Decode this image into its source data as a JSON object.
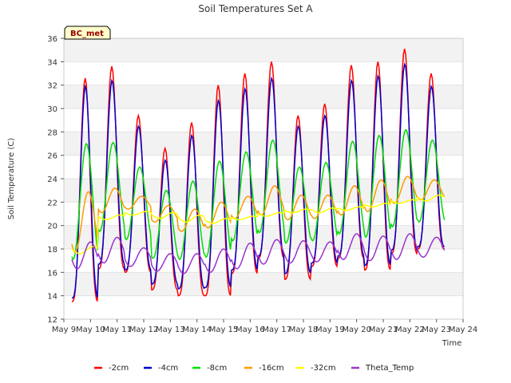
{
  "chart_data": {
    "type": "line",
    "title": "Soil Temperatures Set A",
    "xlabel": "Time",
    "ylabel": "Soil Temperature (C)",
    "station_label": "BC_met",
    "xlim": [
      9,
      24
    ],
    "ylim": [
      12,
      36
    ],
    "x_ticks": [
      "May 9",
      "May 10",
      "May 11",
      "May 12",
      "May 13",
      "May 14",
      "May 15",
      "May 16",
      "May 17",
      "May 18",
      "May 19",
      "May 20",
      "May 21",
      "May 22",
      "May 23",
      "May 24"
    ],
    "y_ticks": [
      12,
      14,
      16,
      18,
      20,
      22,
      24,
      26,
      28,
      30,
      32,
      34,
      36
    ],
    "grid": "horizontal bands",
    "legend_position": "bottom",
    "sample_points_per_day": 24,
    "x_start": 9.3,
    "x_end": 23.3,
    "series": [
      {
        "name": "-2cm",
        "color": "#ff0000",
        "daily_min": [
          13.5,
          16.3,
          16.0,
          14.5,
          14.0,
          14.0,
          15.9,
          17.2,
          15.4,
          16.5,
          17.2,
          16.2,
          17.6,
          18.0
        ],
        "daily_max": [
          32.6,
          33.6,
          29.4,
          26.6,
          28.8,
          32.0,
          33.0,
          34.0,
          29.4,
          30.4,
          33.7,
          34.0,
          35.1,
          33.0
        ]
      },
      {
        "name": "-4cm",
        "color": "#0000cc",
        "daily_min": [
          13.8,
          16.7,
          16.2,
          15.0,
          14.6,
          14.7,
          16.2,
          17.4,
          15.9,
          16.8,
          17.4,
          16.6,
          17.9,
          18.2
        ],
        "daily_max": [
          31.9,
          32.4,
          28.5,
          25.6,
          27.7,
          30.7,
          31.7,
          32.6,
          28.5,
          29.4,
          32.4,
          32.8,
          33.8,
          31.9
        ]
      },
      {
        "name": "-8cm",
        "color": "#00dd00",
        "daily_min": [
          17.1,
          19.5,
          18.8,
          17.2,
          17.1,
          17.3,
          18.7,
          19.4,
          18.5,
          18.7,
          19.3,
          19.0,
          19.9,
          20.3
        ],
        "daily_max": [
          27.0,
          27.1,
          25.0,
          23.0,
          23.8,
          25.5,
          26.3,
          27.3,
          25.0,
          25.4,
          27.2,
          27.7,
          28.2,
          27.3
        ]
      },
      {
        "name": "-16cm",
        "color": "#ff9900",
        "daily_min": [
          17.7,
          21.1,
          21.4,
          20.3,
          19.5,
          19.8,
          20.6,
          20.9,
          20.5,
          20.6,
          20.9,
          21.2,
          21.9,
          22.2
        ],
        "daily_max": [
          22.9,
          23.2,
          22.5,
          21.7,
          21.4,
          22.0,
          22.5,
          23.4,
          22.6,
          22.6,
          23.4,
          23.9,
          24.2,
          23.9
        ]
      },
      {
        "name": "-32cm",
        "color": "#ffff00",
        "daily_min": [
          17.6,
          20.5,
          20.9,
          20.6,
          20.3,
          20.2,
          20.5,
          20.8,
          21.1,
          21.1,
          21.3,
          21.6,
          21.9,
          22.1
        ],
        "daily_max": [
          18.2,
          20.9,
          21.2,
          21.1,
          20.9,
          20.6,
          20.8,
          21.1,
          21.4,
          21.5,
          21.6,
          21.9,
          22.2,
          22.6
        ]
      },
      {
        "name": "Theta_Temp",
        "color": "#9933cc",
        "daily_min": [
          16.3,
          16.8,
          16.5,
          16.1,
          15.9,
          16.0,
          16.3,
          16.7,
          16.8,
          16.9,
          17.1,
          17.0,
          17.1,
          17.3
        ],
        "daily_max": [
          18.6,
          19.0,
          18.1,
          17.6,
          17.6,
          18.0,
          18.5,
          18.8,
          18.7,
          18.6,
          19.3,
          19.1,
          19.3,
          19.0
        ]
      }
    ]
  }
}
